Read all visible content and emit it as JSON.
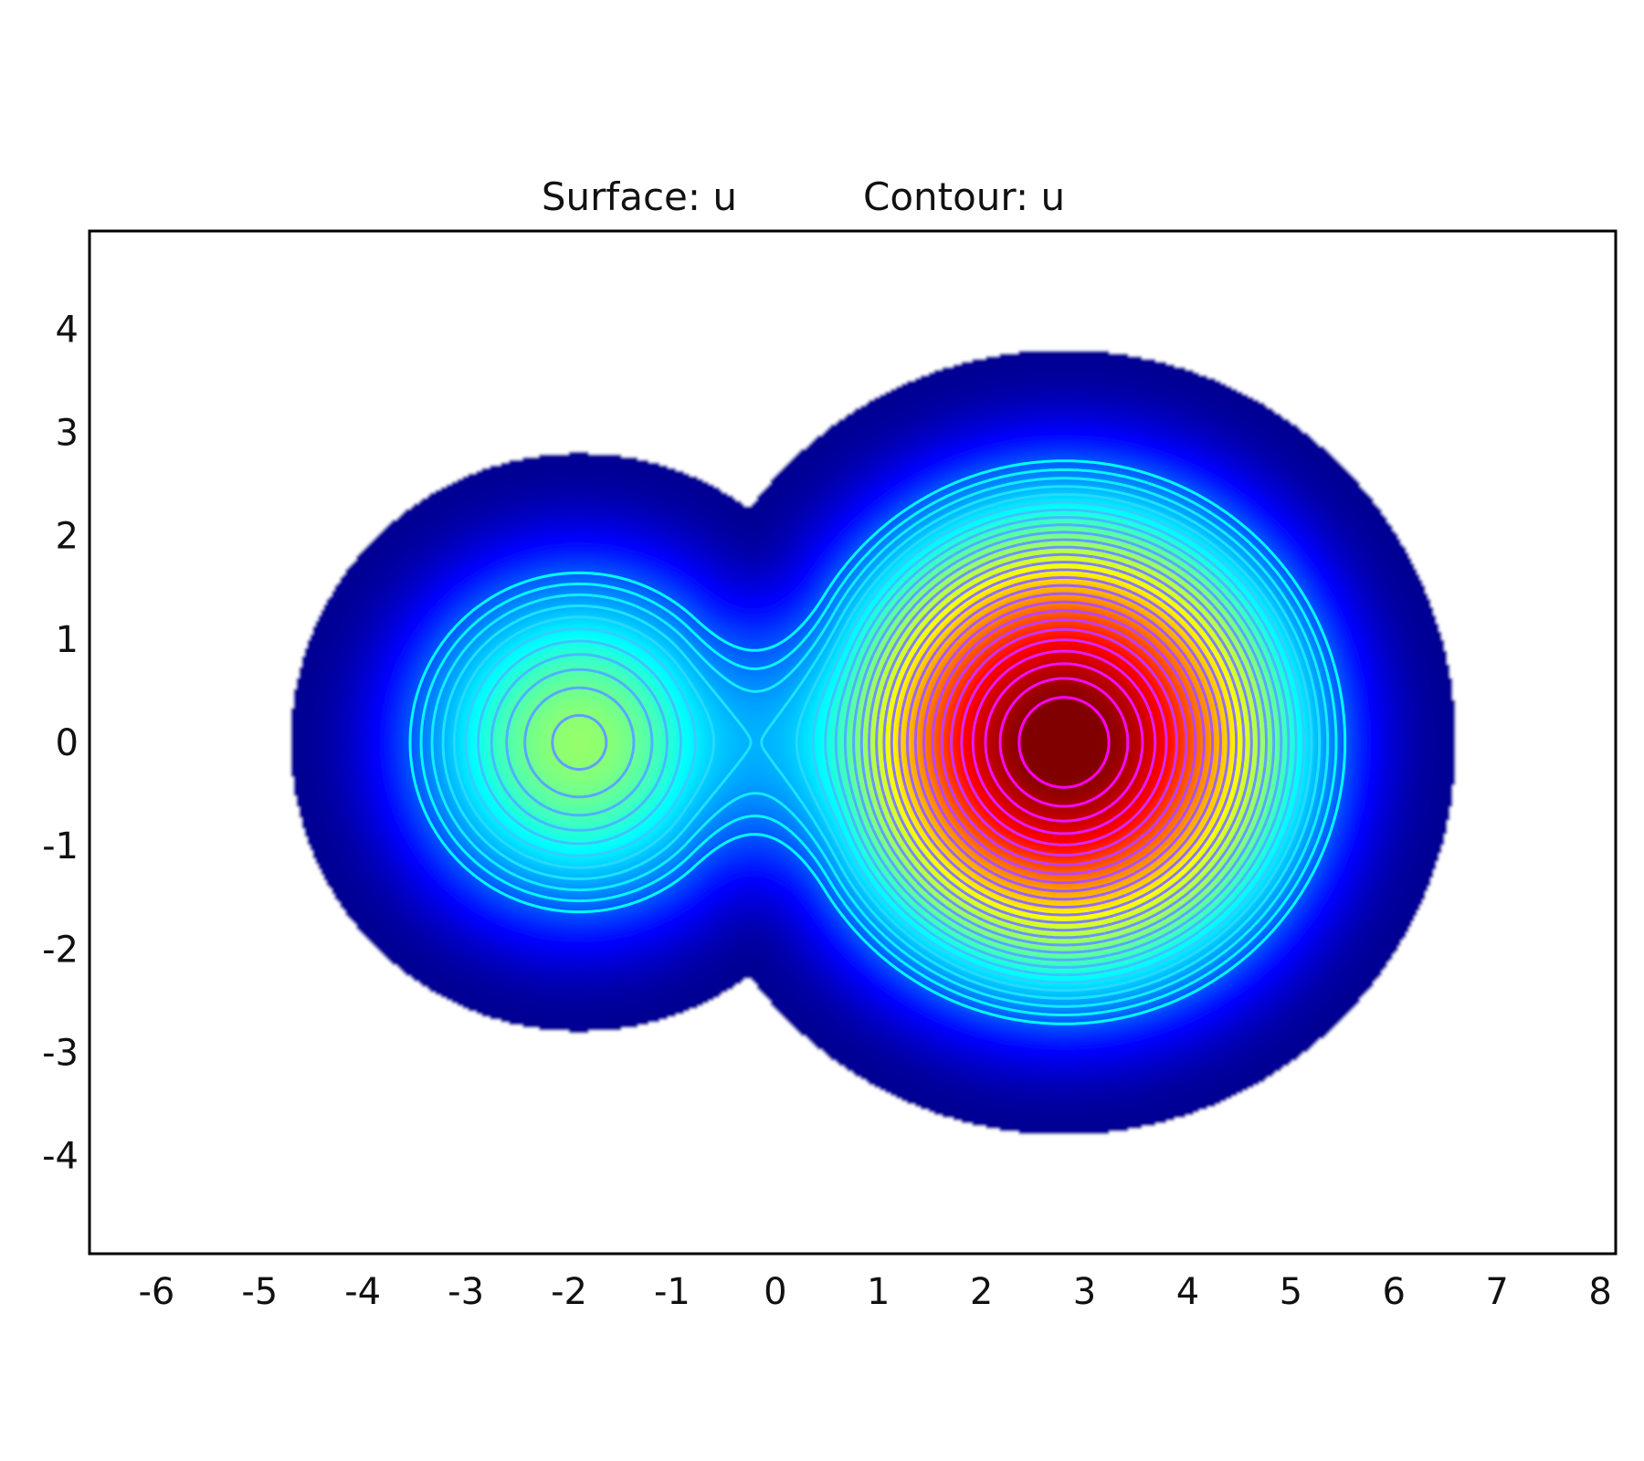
{
  "chart_data": {
    "type": "heatmap",
    "title_surface": "Surface: u",
    "title_contour": "Contour: u",
    "xlim": [
      -6.65,
      8.15
    ],
    "ylim": [
      -4.95,
      4.95
    ],
    "x_ticks": [
      "-6",
      "-5",
      "-4",
      "-3",
      "-2",
      "-1",
      "0",
      "1",
      "2",
      "3",
      "4",
      "5",
      "6",
      "7",
      "8"
    ],
    "y_ticks": [
      "4",
      "3",
      "2",
      "1",
      "0",
      "-1",
      "-2",
      "-3",
      "-4"
    ],
    "x_tick_values": [
      -6,
      -5,
      -4,
      -3,
      -2,
      -1,
      0,
      1,
      2,
      3,
      4,
      5,
      6,
      7,
      8
    ],
    "y_tick_values": [
      4,
      3,
      2,
      1,
      0,
      -1,
      -2,
      -3,
      -4
    ],
    "grid": false,
    "colormap": "jet",
    "sources": [
      {
        "name": "",
        "center": [
          -1.9,
          0.0
        ],
        "radius": 2.8,
        "peak": 0.5
      },
      {
        "name": "",
        "center": [
          2.8,
          0.0
        ],
        "radius": 3.8,
        "peak": 1.0
      }
    ],
    "contour_levels": [
      0.19,
      0.22,
      0.25,
      0.28,
      0.31,
      0.34,
      0.37,
      0.4,
      0.43,
      0.46,
      0.49,
      0.52,
      0.55,
      0.58,
      0.61,
      0.64,
      0.67,
      0.7,
      0.73,
      0.76,
      0.79,
      0.82,
      0.85,
      0.88,
      0.91,
      0.94,
      0.97
    ],
    "colors": {
      "background": "#ffffff",
      "frame": "#000000",
      "outer_band": "#00008f"
    }
  }
}
